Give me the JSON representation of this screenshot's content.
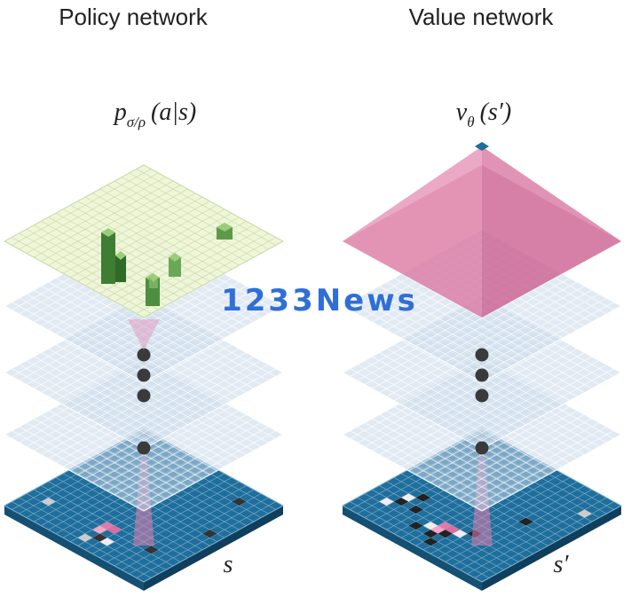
{
  "policy": {
    "title": "Policy network",
    "formula": {
      "base": "p",
      "subscript": "σ/ρ",
      "args": "(a|s)"
    },
    "state_label": "s"
  },
  "value": {
    "title": "Value network",
    "formula": {
      "base": "ν",
      "subscript": "θ",
      "args": "(s′)"
    },
    "state_label": "s′"
  },
  "watermark": "1233News"
}
